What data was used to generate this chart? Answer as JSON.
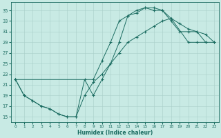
{
  "xlabel": "Humidex (Indice chaleur)",
  "xlim": [
    -0.5,
    23.5
  ],
  "ylim": [
    14.0,
    36.5
  ],
  "yticks": [
    15,
    17,
    19,
    21,
    23,
    25,
    27,
    29,
    31,
    33,
    35
  ],
  "xticks": [
    0,
    1,
    2,
    3,
    4,
    5,
    6,
    7,
    8,
    9,
    10,
    11,
    12,
    13,
    14,
    15,
    16,
    17,
    18,
    19,
    20,
    21,
    22,
    23
  ],
  "bg_color": "#c8eae4",
  "grid_color": "#a8cfc8",
  "line_color": "#1a6b60",
  "curve1_x": [
    0,
    1,
    2,
    3,
    4,
    5,
    6,
    7,
    8,
    9,
    10,
    11,
    12,
    13,
    14,
    15,
    16,
    17,
    18,
    19,
    20,
    21,
    22
  ],
  "curve1_y": [
    22,
    19,
    18,
    17,
    16.5,
    15.5,
    15,
    15,
    22,
    19,
    22,
    25,
    29,
    34,
    35,
    35.5,
    35,
    35,
    33,
    31,
    31,
    31,
    29
  ],
  "curve2_x": [
    0,
    1,
    2,
    3,
    4,
    5,
    6,
    7,
    8,
    9,
    10,
    11,
    12,
    13,
    14,
    15,
    16,
    17,
    18,
    19,
    20,
    21,
    22,
    23
  ],
  "curve2_y": [
    22,
    19,
    18,
    17,
    16.5,
    15.5,
    15,
    15,
    19,
    21.5,
    23,
    25,
    27,
    29,
    30,
    31,
    32,
    33,
    33.5,
    32.5,
    31.5,
    31,
    30.5,
    29
  ],
  "curve3_x": [
    0,
    9,
    10,
    11,
    12,
    13,
    14,
    15,
    16,
    17,
    18,
    20,
    21,
    22,
    23
  ],
  "curve3_y": [
    22,
    22,
    25.5,
    29,
    33,
    34,
    34.5,
    35.5,
    35.5,
    35,
    33.5,
    29,
    29,
    29,
    29
  ]
}
